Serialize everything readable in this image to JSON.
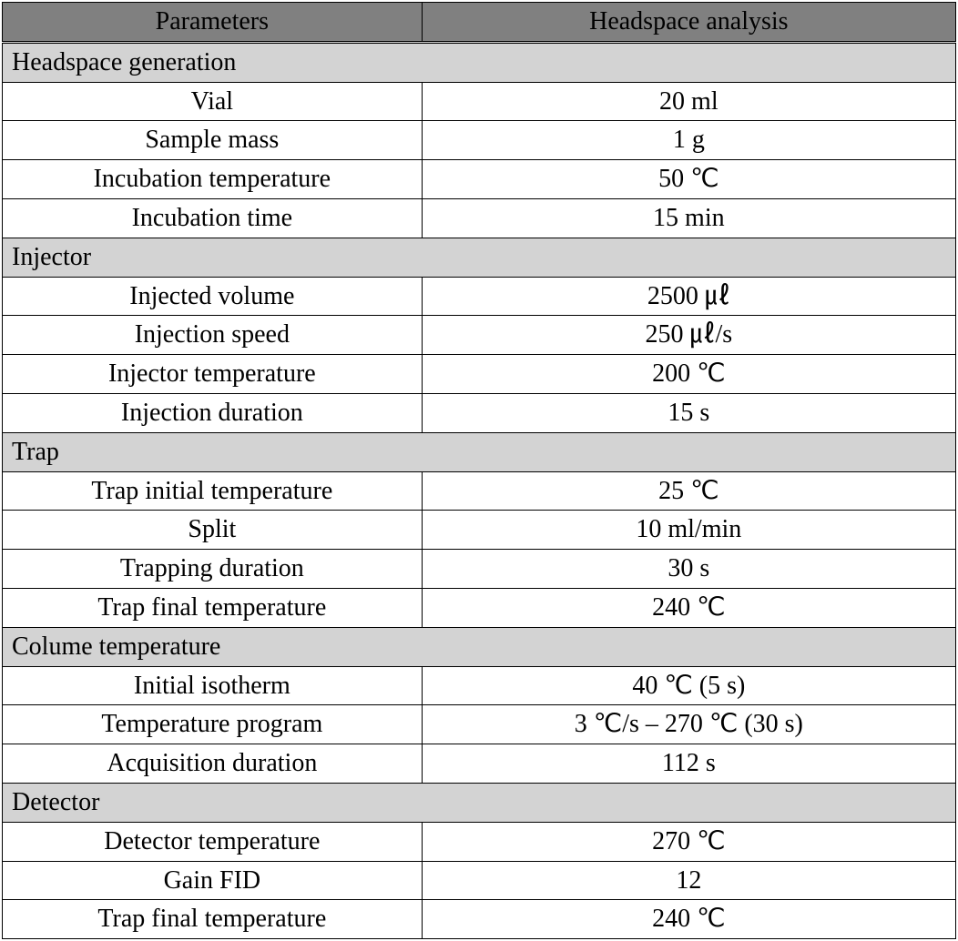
{
  "header_bg": "#808080",
  "section_bg": "#d3d3d3",
  "border_color": "#000000",
  "columns": {
    "param": "Parameters",
    "value": "Headspace analysis"
  },
  "sections": [
    {
      "title": "Headspace generation",
      "rows": [
        {
          "param": "Vial",
          "value": "20 ml"
        },
        {
          "param": "Sample mass",
          "value": "1 g"
        },
        {
          "param": "Incubation temperature",
          "value": "50 ℃"
        },
        {
          "param": "Incubation time",
          "value": "15 min"
        }
      ]
    },
    {
      "title": "Injector",
      "rows": [
        {
          "param": "Injected volume",
          "value": "2500 ㎕"
        },
        {
          "param": "Injection speed",
          "value": "250 ㎕/s"
        },
        {
          "param": "Injector temperature",
          "value": "200 ℃"
        },
        {
          "param": "Injection duration",
          "value": "15 s"
        }
      ]
    },
    {
      "title": "Trap",
      "rows": [
        {
          "param": "Trap initial temperature",
          "value": "25 ℃"
        },
        {
          "param": "Split",
          "value": "10 ml/min"
        },
        {
          "param": "Trapping duration",
          "value": "30 s"
        },
        {
          "param": "Trap final temperature",
          "value": "240 ℃"
        }
      ]
    },
    {
      "title": "Colume temperature",
      "rows": [
        {
          "param": "Initial isotherm",
          "value": "40 ℃ (5 s)"
        },
        {
          "param": "Temperature program",
          "value": "3 ℃/s – 270 ℃ (30 s)"
        },
        {
          "param": "Acquisition duration",
          "value": "112 s"
        }
      ]
    },
    {
      "title": "Detector",
      "rows": [
        {
          "param": "Detector temperature",
          "value": "270 ℃"
        },
        {
          "param": "Gain FID",
          "value": "12"
        },
        {
          "param": "Trap final temperature",
          "value": "240 ℃"
        }
      ]
    }
  ]
}
